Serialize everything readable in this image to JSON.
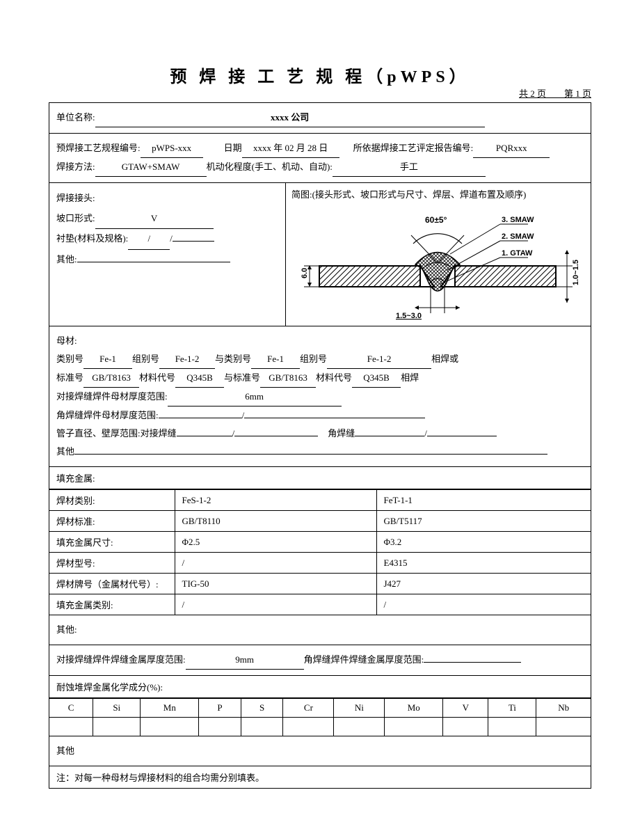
{
  "header": {
    "title": "预 焊 接 工 艺 规 程（pWPS）",
    "page_info": "共 2 页　　第 1 页"
  },
  "unit": {
    "label": "单位名称:",
    "value": "xxxx 公司"
  },
  "meta": {
    "pwps_no_label": "预焊接工艺规程编号:",
    "pwps_no": "pWPS-xxx",
    "date_label": "日期",
    "date": "xxxx 年 02 月 28 日",
    "pqr_label": "所依据焊接工艺评定报告编号:",
    "pqr": "PQRxxx",
    "method_label": "焊接方法:",
    "method": "GTAW+SMAW",
    "mech_label": "机动化程度(手工、机动、自动):",
    "mech": "手工"
  },
  "joint": {
    "heading": "焊接接头:",
    "groove_label": "坡口形式:",
    "groove": "V",
    "backing_label": "衬垫(材料及规格):",
    "backing": "/",
    "other_label": "其他:",
    "other": ""
  },
  "diagram": {
    "caption": "简图:(接头形式、坡口形式与尺寸、焊层、焊道布置及顺序)",
    "angle_label": "60±5°",
    "pass3": "3. SMAW",
    "pass2": "2. SMAW",
    "pass1": "1. GTAW",
    "thickness": "6.0",
    "right_dim": "1.0~1.5",
    "gap": "1.5~3.0"
  },
  "base_metal": {
    "heading": "母材:",
    "cat_label": "类别号",
    "cat1": "Fe-1",
    "grp_label": "组别号",
    "grp1": "Fe-1-2",
    "with_cat_label": "与类别号",
    "cat2": "Fe-1",
    "grp2": "Fe-1-2",
    "weld_or": "相焊或",
    "std_label": "标准号",
    "std1": "GB/T8163",
    "mat_label": "材料代号",
    "mat1": "Q345B",
    "with_std_label": "与标准号",
    "std2": "GB/T8163",
    "mat2": "Q345B",
    "weld": "相焊",
    "butt_thick_label": "对接焊缝焊件母材厚度范围:",
    "butt_thick": "6mm",
    "fillet_thick_label": "角焊缝焊件母材厚度范围:",
    "fillet_thick_a": "",
    "fillet_thick_b": "/",
    "pipe_label": "管子直径、壁厚范围:对接焊缝",
    "pipe_a": "",
    "pipe_b": "/",
    "fillet_label2": "角焊缝",
    "fillet_val": "/",
    "other_label": "其他",
    "other": ""
  },
  "filler": {
    "heading": "填充金属:",
    "rows": [
      {
        "label": "焊材类别:",
        "c1": "FeS-1-2",
        "c2": "FeT-1-1"
      },
      {
        "label": "焊材标准:",
        "c1": "GB/T8110",
        "c2": "GB/T5117"
      },
      {
        "label": "填充金属尺寸:",
        "c1": "Φ2.5",
        "c2": "Φ3.2"
      },
      {
        "label": "焊材型号:",
        "c1": "/",
        "c2": "E4315"
      },
      {
        "label": "焊材牌号（金属材代号）:",
        "c1": "TIG-50",
        "c2": "J427"
      },
      {
        "label": "填充金属类别:",
        "c1": "/",
        "c2": "/"
      }
    ],
    "other_label": "其他:",
    "butt_metal_label": "对接焊缝焊件焊缝金属厚度范围:",
    "butt_metal": "9mm",
    "fillet_metal_label": "角焊缝焊件焊缝金属厚度范围:",
    "fillet_metal": "",
    "chem_label": "耐蚀堆焊金属化学成分(%):",
    "elements": [
      "C",
      "Si",
      "Mn",
      "P",
      "S",
      "Cr",
      "Ni",
      "Mo",
      "V",
      "Ti",
      "Nb"
    ],
    "other2": "其他",
    "note": "注：对每一种母材与焊接材料的组合均需分别填表。"
  }
}
